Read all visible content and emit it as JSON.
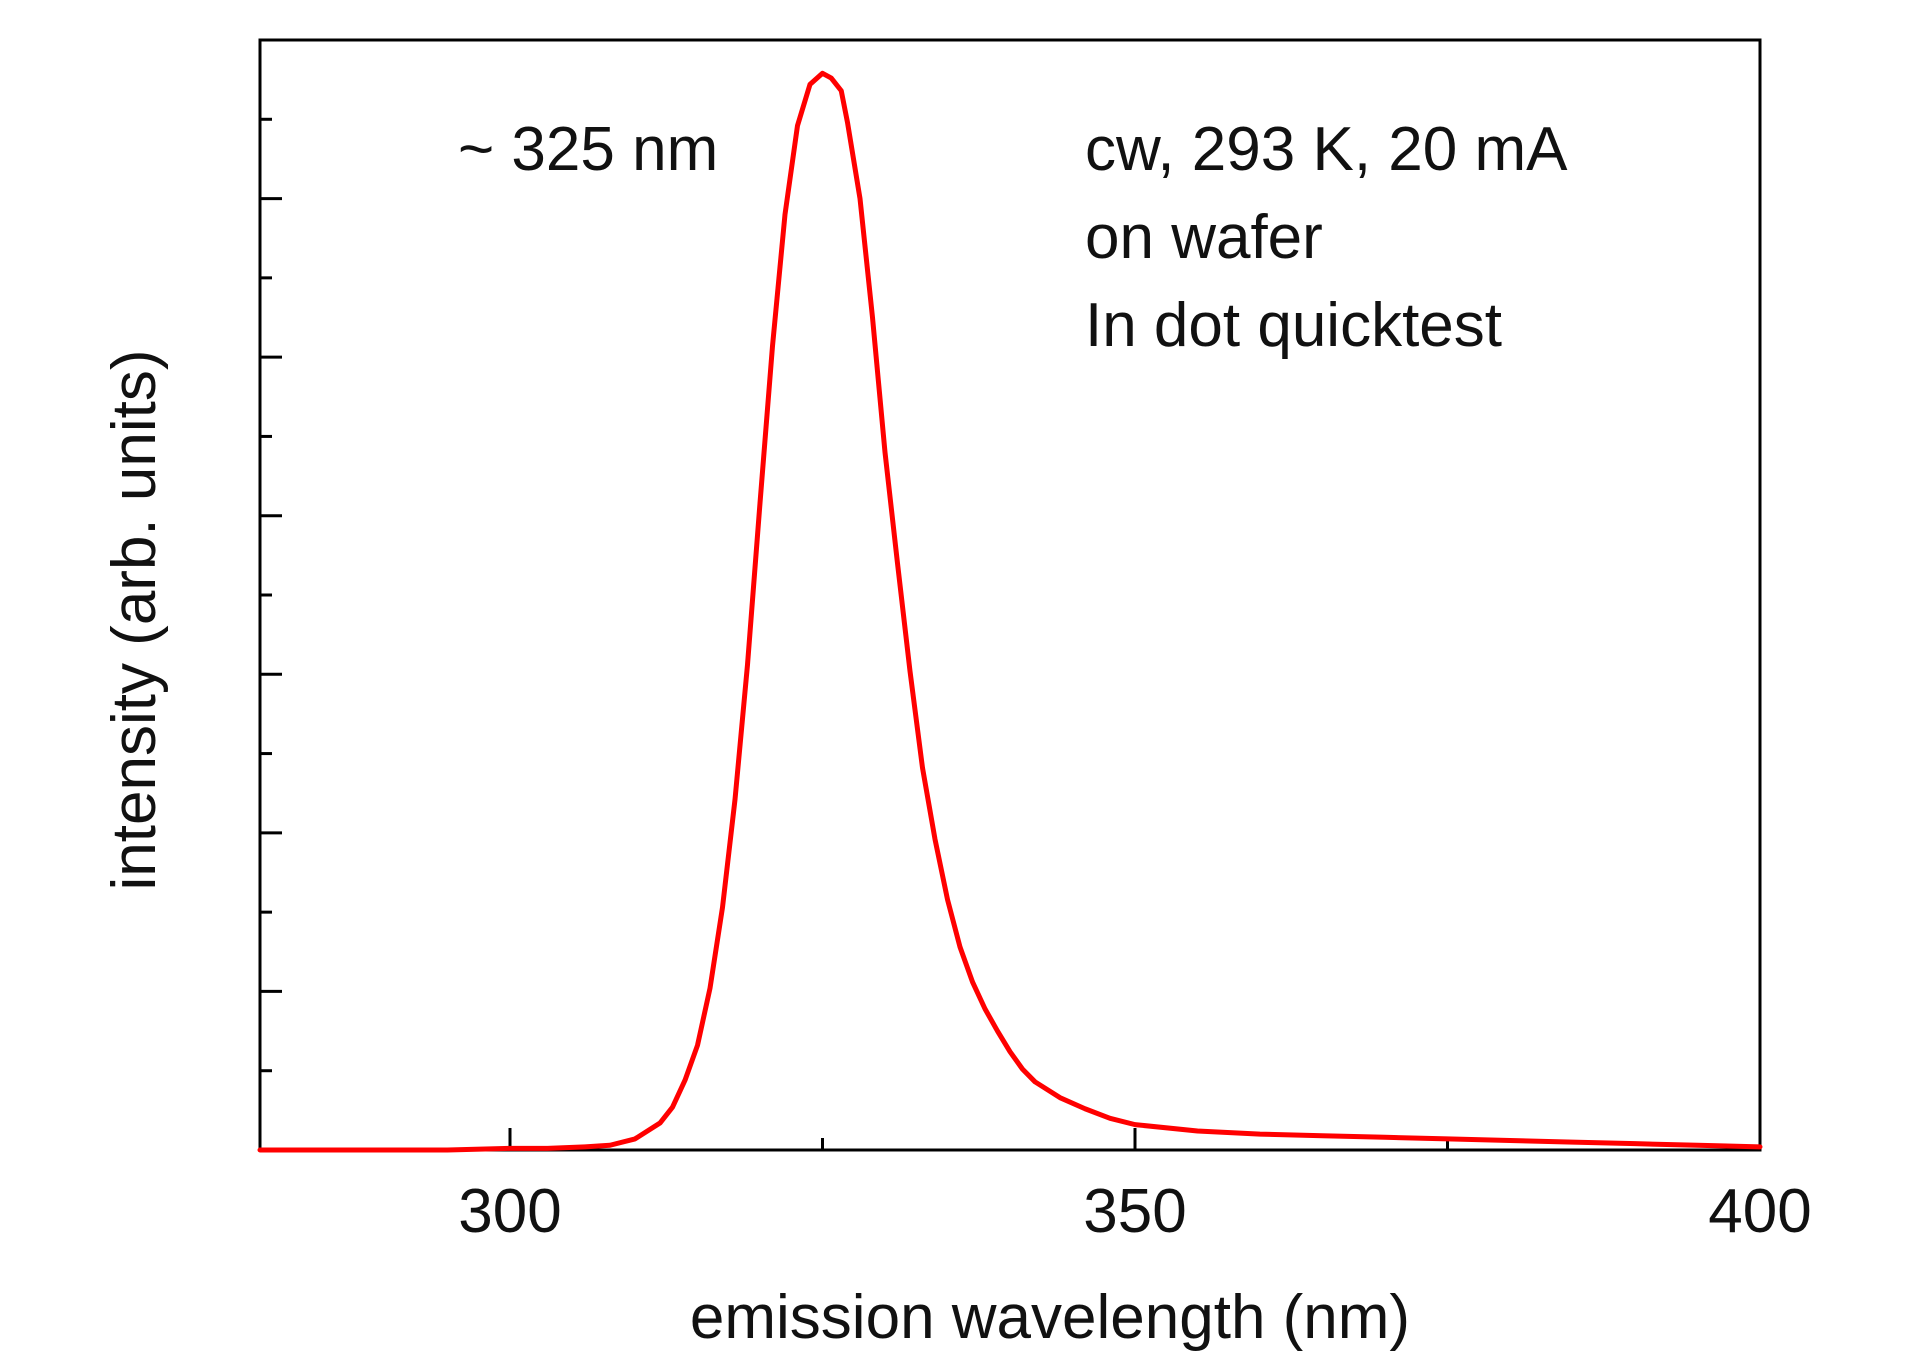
{
  "chart_data": {
    "type": "line",
    "title": "",
    "xlabel": "emission wavelength (nm)",
    "ylabel": "intensity (arb. units)",
    "xlim": [
      280,
      400
    ],
    "ylim": [
      0,
      7.0
    ],
    "x_ticks": [
      300,
      350,
      400
    ],
    "x_tick_labels": [
      "300",
      "350",
      "400"
    ],
    "x_minor_ticks": [
      325,
      375
    ],
    "y_ticks": [
      1,
      2,
      3,
      4,
      5,
      6
    ],
    "y_tick_labels": [],
    "y_minor_ticks": [
      0.5,
      1.5,
      2.5,
      3.5,
      4.5,
      5.5,
      6.5
    ],
    "grid": false,
    "legend": "none",
    "annotations": [
      {
        "text": "~ 325 nm"
      },
      {
        "text": "cw, 293 K, 20 mA"
      },
      {
        "text": "on wafer"
      },
      {
        "text": "In dot quicktest"
      }
    ],
    "series": [
      {
        "color": "#ff0000",
        "x": [
          280,
          285,
          290,
          295,
          300,
          303,
          306,
          308,
          310,
          312,
          313,
          314,
          315,
          316,
          317,
          318,
          319,
          320,
          321,
          322,
          323,
          324,
          325,
          325.7,
          326.5,
          327,
          328,
          329,
          330,
          331,
          332,
          333,
          334,
          335,
          336,
          337,
          338,
          339,
          340,
          341,
          342,
          344,
          346,
          348,
          350,
          355,
          360,
          365,
          370,
          375,
          380,
          385,
          390,
          395,
          400
        ],
        "y": [
          0.0,
          0.0,
          0.0,
          0.0,
          0.01,
          0.01,
          0.02,
          0.03,
          0.07,
          0.17,
          0.27,
          0.44,
          0.66,
          1.02,
          1.53,
          2.21,
          3.06,
          4.08,
          5.07,
          5.9,
          6.46,
          6.72,
          6.79,
          6.76,
          6.68,
          6.48,
          6.0,
          5.25,
          4.4,
          3.7,
          3.02,
          2.41,
          1.96,
          1.58,
          1.28,
          1.06,
          0.89,
          0.75,
          0.62,
          0.51,
          0.43,
          0.33,
          0.26,
          0.2,
          0.16,
          0.12,
          0.1,
          0.09,
          0.08,
          0.07,
          0.06,
          0.05,
          0.04,
          0.03,
          0.02
        ]
      }
    ]
  }
}
